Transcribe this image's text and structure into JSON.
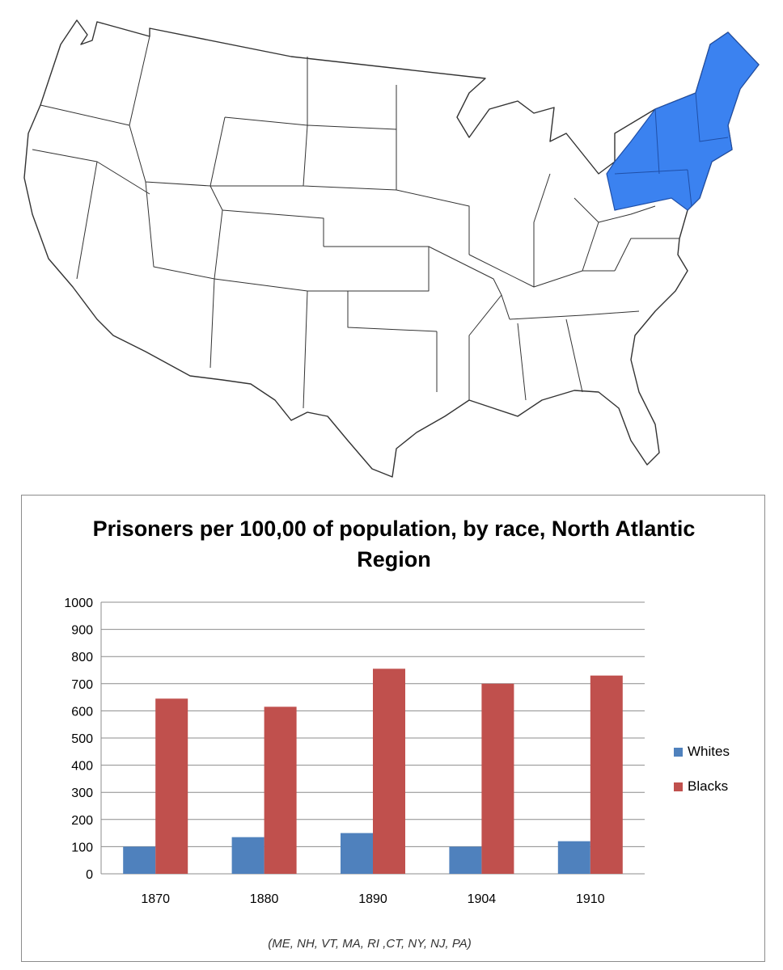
{
  "colors": {
    "highlight_region": "#3b82f0",
    "map_outline": "#333333",
    "whites_series": "#4f81bd",
    "blacks_series": "#c0504d",
    "gridline": "#8c8c8c"
  },
  "map": {
    "highlighted_region": "North Atlantic Region"
  },
  "chart_data": {
    "type": "bar",
    "title": "Prisoners per 100,00 of population, by race, North Atlantic Region",
    "categories": [
      "1870",
      "1880",
      "1890",
      "1904",
      "1910"
    ],
    "series": [
      {
        "name": "Whites",
        "values": [
          100,
          135,
          150,
          100,
          120
        ]
      },
      {
        "name": "Blacks",
        "values": [
          645,
          615,
          755,
          700,
          730
        ]
      }
    ],
    "ylim": [
      0,
      1000
    ],
    "yticks": [
      "0",
      "100",
      "200",
      "300",
      "400",
      "500",
      "600",
      "700",
      "800",
      "900",
      "1000"
    ],
    "grid": true,
    "legend_position": "right",
    "footnote": "(ME, NH, VT, MA, RI ,CT, NY, NJ, PA)"
  }
}
